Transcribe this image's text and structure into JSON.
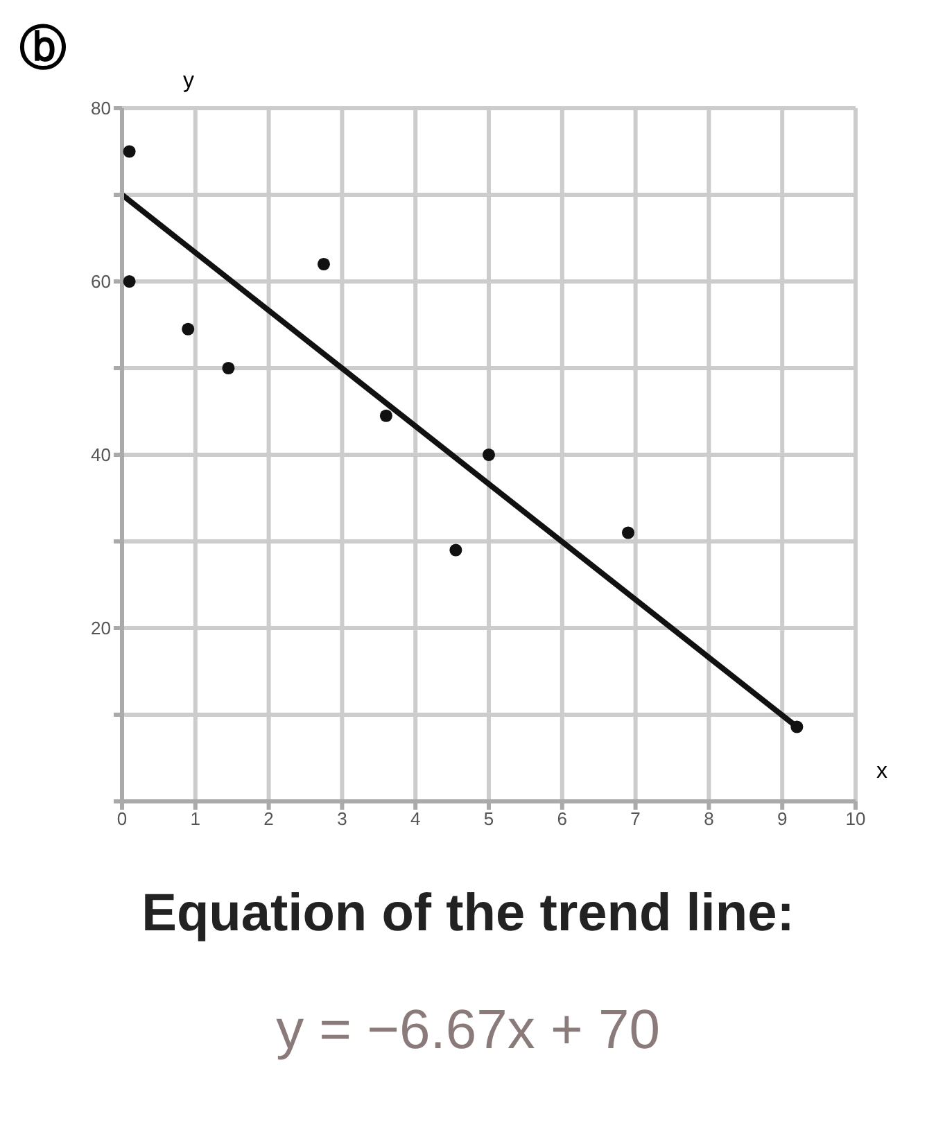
{
  "chart_data": {
    "type": "scatter",
    "title": "ⓑ",
    "xlabel": "x",
    "ylabel": "y",
    "xlim": [
      0,
      10
    ],
    "xticks": [
      0,
      1,
      2,
      3,
      4,
      5,
      6,
      7,
      8,
      9,
      10
    ],
    "ylim": [
      0,
      80
    ],
    "yticks": [
      {
        "value": 0,
        "label": null
      },
      {
        "value": 10,
        "label": null
      },
      20,
      {
        "value": 30,
        "label": null
      },
      40,
      {
        "value": 50,
        "label": null
      },
      60,
      {
        "value": 70,
        "label": null
      },
      80
    ],
    "grid": true,
    "series": [
      {
        "marker": "circle",
        "color": "#111111",
        "x": [
          0.1,
          0.1,
          0.9,
          1.45,
          2.75,
          3.6,
          4.55,
          5,
          6.9,
          9.2
        ],
        "values": [
          75,
          60,
          54.5,
          50,
          62,
          44.5,
          29,
          40,
          31,
          8.6
        ]
      },
      {
        "type": "line",
        "color": "#111111",
        "x": [
          0,
          9.2
        ],
        "values": [
          70,
          8.6
        ]
      }
    ],
    "annotations": [
      "Equation of the trend line:",
      "y = −6.67x + 70"
    ]
  }
}
